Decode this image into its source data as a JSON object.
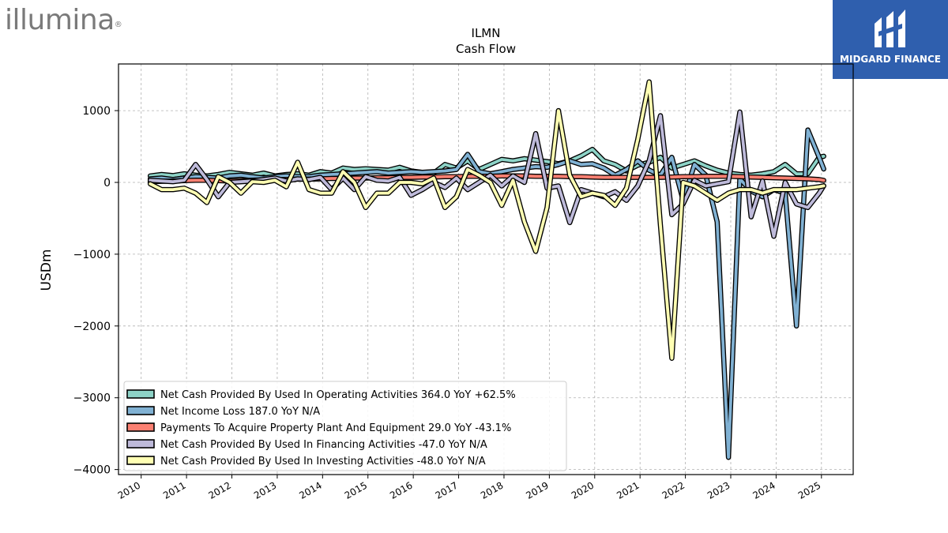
{
  "brand": {
    "left_logo_text": "illumina",
    "left_logo_mark": "®",
    "right_logo_text": "MIDGARD FINANCE",
    "right_logo_icon": "midgard-m-icon"
  },
  "chart_data": {
    "type": "line",
    "title": "ILMN",
    "subtitle": "Cash Flow",
    "xlabel": "",
    "ylabel": "USDm",
    "xlim": [
      2009.5,
      2025.7
    ],
    "ylim": [
      -4070,
      1650
    ],
    "yticks": [
      1000,
      0,
      -1000,
      -2000,
      -3000,
      -4000
    ],
    "ytick_labels": [
      "1000",
      "0",
      "−1000",
      "−2000",
      "−3000",
      "−4000"
    ],
    "xticks": [
      2010,
      2011,
      2012,
      2013,
      2014,
      2015,
      2016,
      2017,
      2018,
      2019,
      2020,
      2021,
      2022,
      2023,
      2024,
      2025
    ],
    "xtick_labels": [
      "2010",
      "2011",
      "2012",
      "2013",
      "2014",
      "2015",
      "2016",
      "2017",
      "2018",
      "2019",
      "2020",
      "2021",
      "2022",
      "2023",
      "2024",
      "2025"
    ],
    "grid": true,
    "legend_position": "lower-left",
    "x": [
      2010.2,
      2010.45,
      2010.7,
      2010.95,
      2011.2,
      2011.45,
      2011.7,
      2011.95,
      2012.2,
      2012.45,
      2012.7,
      2012.95,
      2013.2,
      2013.45,
      2013.7,
      2013.95,
      2014.2,
      2014.45,
      2014.7,
      2014.95,
      2015.2,
      2015.45,
      2015.7,
      2015.95,
      2016.2,
      2016.45,
      2016.7,
      2016.95,
      2017.2,
      2017.45,
      2017.7,
      2017.95,
      2018.2,
      2018.45,
      2018.7,
      2018.95,
      2019.2,
      2019.45,
      2019.7,
      2019.95,
      2020.2,
      2020.45,
      2020.7,
      2020.95,
      2021.2,
      2021.45,
      2021.7,
      2021.95,
      2022.2,
      2022.45,
      2022.7,
      2022.95,
      2023.2,
      2023.45,
      2023.7,
      2023.95,
      2024.2,
      2024.45,
      2024.7,
      2024.95,
      2025.05
    ],
    "series": [
      {
        "name": "Net Cash Provided By Used In Operating Activities",
        "legend_label": "Net Cash Provided By Used In Operating Activities  364.0 YoY +62.5%",
        "color": "#8dd3c7",
        "values": [
          90,
          110,
          95,
          120,
          100,
          90,
          110,
          140,
          120,
          100,
          130,
          90,
          110,
          120,
          100,
          150,
          130,
          200,
          180,
          190,
          180,
          170,
          210,
          160,
          140,
          130,
          250,
          200,
          300,
          180,
          250,
          320,
          300,
          330,
          310,
          290,
          260,
          300,
          370,
          460,
          300,
          250,
          160,
          240,
          280,
          350,
          200,
          250,
          300,
          230,
          170,
          130,
          110,
          100,
          120,
          150,
          250,
          120,
          120,
          350,
          364
        ]
      },
      {
        "name": "Net Income Loss",
        "legend_label": "Net Income Loss  187.0 YoY N/A",
        "color": "#80b1d3",
        "values": [
          50,
          60,
          40,
          60,
          80,
          70,
          60,
          90,
          100,
          80,
          60,
          80,
          90,
          80,
          80,
          100,
          110,
          120,
          130,
          140,
          150,
          130,
          140,
          150,
          140,
          150,
          160,
          180,
          390,
          150,
          120,
          150,
          180,
          200,
          220,
          210,
          250,
          300,
          250,
          260,
          200,
          100,
          180,
          300,
          170,
          100,
          350,
          -250,
          250,
          100,
          -550,
          -3830,
          50,
          -120,
          -200,
          -100,
          -150,
          -2000,
          730,
          350,
          187
        ]
      },
      {
        "name": "Payments To Acquire Property Plant And Equipment",
        "legend_label": "Payments To Acquire Property Plant And Equipment  29.0 YoY -43.1%",
        "color": "#fb8072",
        "values": [
          10,
          15,
          20,
          25,
          30,
          30,
          25,
          20,
          25,
          30,
          35,
          40,
          40,
          45,
          45,
          50,
          55,
          55,
          60,
          60,
          65,
          65,
          70,
          70,
          75,
          75,
          80,
          80,
          85,
          85,
          85,
          90,
          90,
          90,
          85,
          85,
          85,
          80,
          80,
          75,
          70,
          70,
          70,
          70,
          70,
          70,
          75,
          80,
          80,
          85,
          85,
          85,
          80,
          75,
          70,
          65,
          60,
          55,
          50,
          40,
          29
        ]
      },
      {
        "name": "Net Cash Provided By Used In Financing Activities",
        "legend_label": "Net Cash Provided By Used In Financing Activities  -47.0 YoY N/A",
        "color": "#bebada",
        "values": [
          30,
          20,
          10,
          30,
          250,
          40,
          -200,
          0,
          10,
          20,
          40,
          60,
          20,
          50,
          40,
          70,
          -100,
          60,
          -100,
          80,
          30,
          20,
          70,
          -180,
          -100,
          0,
          -70,
          60,
          -100,
          0,
          100,
          -50,
          90,
          0,
          680,
          -80,
          -50,
          -560,
          -100,
          -150,
          -200,
          -130,
          -250,
          -50,
          300,
          930,
          -450,
          -300,
          30,
          -50,
          -20,
          10,
          980,
          -480,
          20,
          -750,
          0,
          -300,
          -350,
          -150,
          -47
        ]
      },
      {
        "name": "Net Cash Provided By Used In Investing Activities",
        "legend_label": "Net Cash Provided By Used In Investing Activities  -48.0 YoY N/A",
        "color": "#ffffb3",
        "values": [
          -20,
          -100,
          -100,
          -80,
          -150,
          -280,
          80,
          0,
          -150,
          10,
          0,
          30,
          -60,
          280,
          -100,
          -150,
          -150,
          150,
          0,
          -350,
          -150,
          -150,
          0,
          0,
          -20,
          60,
          -350,
          -200,
          180,
          100,
          0,
          -320,
          30,
          -550,
          -960,
          -350,
          1000,
          100,
          -200,
          -150,
          -180,
          -320,
          -80,
          600,
          1400,
          -600,
          -2450,
          0,
          -50,
          -150,
          -250,
          -150,
          -100,
          -100,
          -150,
          -100,
          -100,
          -100,
          -80,
          -60,
          -48
        ]
      }
    ]
  }
}
